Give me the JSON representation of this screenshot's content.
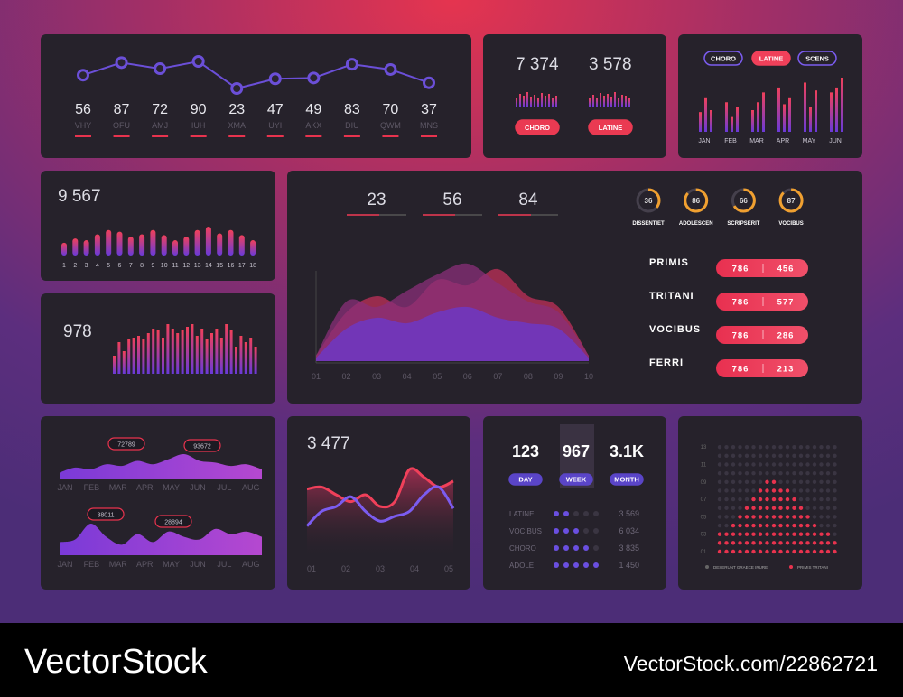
{
  "top_line": {
    "categories": [
      "VHY",
      "OFU",
      "AMJ",
      "IUH",
      "XMA",
      "UYI",
      "AKX",
      "DIU",
      "QWM",
      "MNS"
    ],
    "values": [
      56,
      87,
      72,
      90,
      23,
      47,
      49,
      83,
      70,
      37
    ],
    "color": "#6b4fd8"
  },
  "counters": {
    "items": [
      {
        "value": "7 374",
        "button": "CHORO",
        "bars": [
          10,
          14,
          12,
          16,
          11,
          13,
          9,
          15,
          12,
          14,
          10,
          12
        ]
      },
      {
        "value": "3 578",
        "button": "LATINE",
        "bars": [
          9,
          13,
          10,
          15,
          12,
          14,
          11,
          16,
          10,
          13,
          12,
          9
        ]
      }
    ]
  },
  "monthly": {
    "categories": [
      "JAN",
      "FEB",
      "MAR",
      "APR",
      "MAY",
      "JUN"
    ],
    "selected": 1,
    "series": [
      {
        "name": "CHORO",
        "color": "#7b5cf0",
        "values": [
          20,
          30,
          22,
          45,
          50,
          40
        ]
      },
      {
        "name": "LATINE",
        "color": "#f0405a",
        "values": [
          35,
          15,
          30,
          28,
          25,
          45
        ]
      },
      {
        "name": "SCENS",
        "color": "#b04fc8",
        "values": [
          22,
          25,
          40,
          35,
          42,
          55
        ]
      }
    ]
  },
  "bars18": {
    "title": "9 567",
    "categories": [
      "1",
      "2",
      "3",
      "4",
      "5",
      "6",
      "7",
      "8",
      "9",
      "10",
      "11",
      "12",
      "13",
      "14",
      "15",
      "16",
      "17",
      "18"
    ],
    "values": [
      15,
      20,
      18,
      25,
      30,
      28,
      22,
      25,
      30,
      24,
      18,
      22,
      30,
      34,
      26,
      30,
      24,
      18
    ]
  },
  "bars30": {
    "title": "978",
    "values": [
      20,
      35,
      25,
      38,
      40,
      42,
      38,
      45,
      50,
      48,
      40,
      55,
      50,
      45,
      48,
      52,
      55,
      42,
      50,
      38,
      45,
      50,
      40,
      55,
      48,
      30,
      42,
      35,
      40,
      30
    ]
  },
  "overview": {
    "stats": [
      "23",
      "56",
      "84"
    ],
    "categories": [
      "01",
      "02",
      "03",
      "04",
      "05",
      "06",
      "07",
      "08",
      "09",
      "10"
    ],
    "series": [
      {
        "color": "#c0305a",
        "values": [
          5,
          45,
          60,
          50,
          75,
          70,
          85,
          60,
          50,
          5
        ]
      },
      {
        "color": "#8a2f7a",
        "values": [
          5,
          55,
          50,
          65,
          80,
          90,
          72,
          55,
          45,
          5
        ]
      },
      {
        "color": "#6a3ad0",
        "values": [
          3,
          30,
          40,
          35,
          45,
          50,
          40,
          35,
          30,
          3
        ]
      }
    ],
    "rings": {
      "ylim": [
        0,
        100
      ],
      "color": "#f0a030",
      "items": [
        {
          "label": "DISSENTIET",
          "value": 36
        },
        {
          "label": "ADOLESCEN",
          "value": 86
        },
        {
          "label": "SCRIPSERIT",
          "value": 66
        },
        {
          "label": "VOCIBUS",
          "value": 87
        }
      ]
    },
    "list": [
      {
        "name": "PRIMIS",
        "a": 786,
        "b": 456
      },
      {
        "name": "TRITANI",
        "a": 786,
        "b": 577
      },
      {
        "name": "VOCIBUS",
        "a": 786,
        "b": 286
      },
      {
        "name": "FERRI",
        "a": 786,
        "b": 213
      }
    ]
  },
  "months_area": {
    "categories": [
      "JAN",
      "FEB",
      "MAR",
      "APR",
      "MAY",
      "JUN",
      "JUL",
      "AUG"
    ],
    "charts": [
      {
        "values": [
          20,
          35,
          30,
          45,
          40,
          55,
          45,
          60,
          75,
          55,
          50,
          40,
          45,
          30
        ],
        "labels": [
          72789,
          93672
        ]
      },
      {
        "values": [
          25,
          30,
          60,
          35,
          20,
          40,
          25,
          45,
          35,
          30,
          50,
          40,
          45,
          35
        ],
        "labels": [
          38011,
          28894
        ]
      }
    ]
  },
  "lines": {
    "title": "3 477",
    "categories": [
      "01",
      "02",
      "03",
      "04",
      "05"
    ],
    "series": [
      {
        "color": "#f0405a",
        "values": [
          68,
          70,
          62,
          55,
          62,
          50,
          55,
          88,
          80,
          70,
          76
        ]
      },
      {
        "color": "#7b5cf0",
        "values": [
          30,
          45,
          50,
          60,
          45,
          35,
          40,
          45,
          62,
          70,
          48
        ]
      }
    ]
  },
  "periods": {
    "stats": [
      {
        "value": "123",
        "button": "DAY"
      },
      {
        "value": "967",
        "button": "WEEK"
      },
      {
        "value": "3.1K",
        "button": "MONTH"
      }
    ],
    "rows": [
      {
        "name": "LATINE",
        "level": 2,
        "value": "3 569"
      },
      {
        "name": "VOCIBUS",
        "level": 3,
        "value": "6 034"
      },
      {
        "name": "CHORO",
        "level": 4,
        "value": "3 835"
      },
      {
        "name": "ADOLE",
        "level": 5,
        "value": "1 450"
      }
    ]
  },
  "dots": {
    "yticks": [
      13,
      11,
      {
        "value": 9,
        "label": "09"
      },
      {
        "value": 7,
        "label": "07"
      },
      {
        "value": 5,
        "label": "05"
      },
      {
        "value": 3,
        "label": "03"
      },
      {
        "value": 1,
        "label": "01"
      }
    ],
    "values": [
      3,
      3,
      4,
      5,
      6,
      7,
      8,
      9,
      9,
      8,
      8,
      7,
      6,
      5,
      4,
      3,
      3,
      2
    ],
    "legend": [
      "DESERUNT GRAECE IRURE",
      "PRIMIS TRITANI"
    ]
  },
  "footer": {
    "brand": "VectorStock",
    "url": "VectorStock.com/22862721"
  }
}
